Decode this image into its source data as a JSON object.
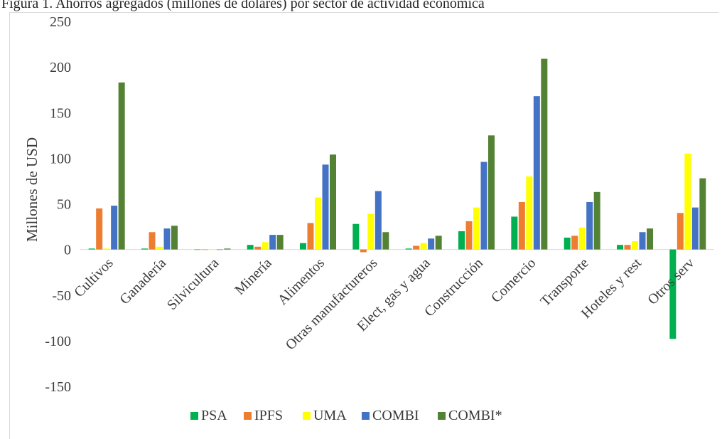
{
  "caption": "Figura 1. Ahorros agregados (millones de dólares) por sector de actividad económica",
  "chart_data": {
    "type": "bar",
    "categories": [
      "Cultivos",
      "Ganadería",
      "Silvicultura",
      "Minería",
      "Alimentos",
      "Otras manufactureros",
      "Elect, gas y agua",
      "Construcción",
      "Comercio",
      "Transporte",
      "Hoteles y rest",
      "Otros serv"
    ],
    "series": [
      {
        "name": "PSA",
        "color": "#00b050",
        "values": [
          1,
          1,
          0,
          5,
          7,
          28,
          1,
          20,
          36,
          13,
          5,
          -98
        ]
      },
      {
        "name": "IPFS",
        "color": "#ed7d31",
        "values": [
          45,
          19,
          0,
          3,
          29,
          -3,
          4,
          31,
          52,
          15,
          5,
          40
        ]
      },
      {
        "name": "UMA",
        "color": "#ffff00",
        "values": [
          1,
          3,
          0,
          8,
          57,
          39,
          7,
          46,
          80,
          24,
          9,
          105
        ]
      },
      {
        "name": "COMBI",
        "color": "#4472c4",
        "values": [
          48,
          23,
          0,
          16,
          93,
          64,
          12,
          96,
          168,
          52,
          19,
          46
        ]
      },
      {
        "name": "COMBI*",
        "color": "#548235",
        "values": [
          183,
          26,
          1,
          16,
          104,
          19,
          15,
          125,
          209,
          63,
          23,
          78
        ]
      }
    ],
    "ylabel": "Millones de USD",
    "ylim": [
      -150,
      250
    ],
    "yticks": [
      "250",
      "200",
      "150",
      "100",
      "50",
      "0",
      "-50",
      "-100",
      "-150"
    ],
    "legend_position": "bottom",
    "gridlines": false
  }
}
